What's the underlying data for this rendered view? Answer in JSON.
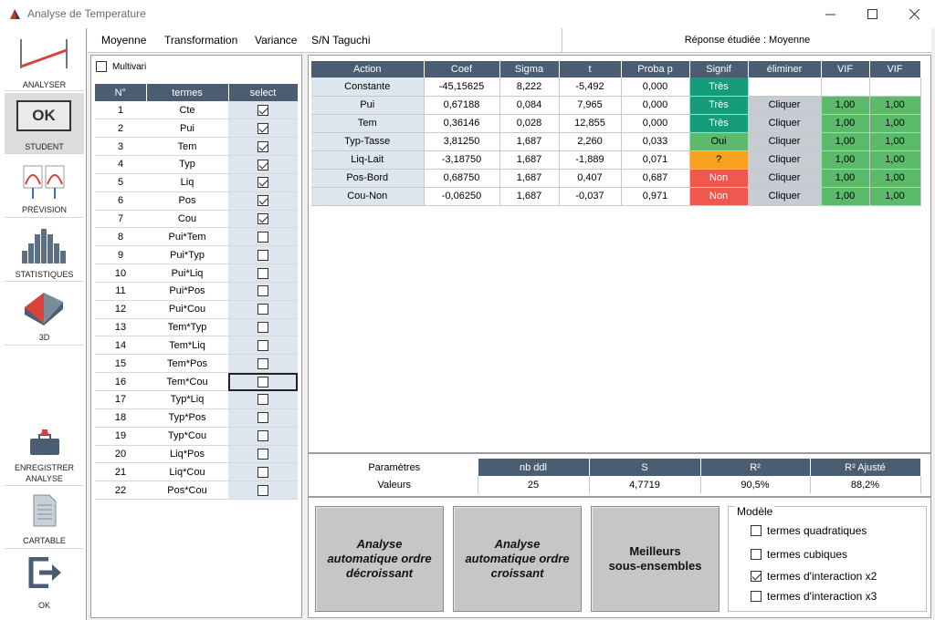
{
  "window": {
    "title": "Analyse de Temperature"
  },
  "toolbar": {
    "items": [
      {
        "label": "ANALYSER",
        "icon": "line-chart-icon"
      },
      {
        "label": "STUDENT",
        "icon": "ok-button-icon",
        "icon_text": "OK"
      },
      {
        "label": "PRÉVISION",
        "icon": "prevision-icon"
      },
      {
        "label": "STATISTIQUES",
        "icon": "histogram-icon"
      },
      {
        "label": "3D",
        "icon": "surface-3d-icon"
      },
      {
        "label": "ENREGISTRER\nANALYSE",
        "icon": "save-briefcase-icon"
      },
      {
        "label": "CARTABLE",
        "icon": "document-icon"
      },
      {
        "label": "OK",
        "icon": "exit-icon"
      }
    ]
  },
  "menu": {
    "items": [
      "Moyenne",
      "Transformation",
      "Variance",
      "S/N Taguchi"
    ]
  },
  "response": {
    "text": "Réponse étudiée : Moyenne"
  },
  "multivari": {
    "label": "Multivari",
    "checked": false
  },
  "terms": {
    "headers": [
      "N°",
      "termes",
      "select"
    ],
    "rows": [
      {
        "n": "1",
        "term": "Cte",
        "selected": true
      },
      {
        "n": "2",
        "term": "Pui",
        "selected": true
      },
      {
        "n": "3",
        "term": "Tem",
        "selected": true
      },
      {
        "n": "4",
        "term": "Typ",
        "selected": true
      },
      {
        "n": "5",
        "term": "Liq",
        "selected": true
      },
      {
        "n": "6",
        "term": "Pos",
        "selected": true
      },
      {
        "n": "7",
        "term": "Cou",
        "selected": true
      },
      {
        "n": "8",
        "term": "Pui*Tem",
        "selected": false
      },
      {
        "n": "9",
        "term": "Pui*Typ",
        "selected": false
      },
      {
        "n": "10",
        "term": "Pui*Liq",
        "selected": false
      },
      {
        "n": "11",
        "term": "Pui*Pos",
        "selected": false
      },
      {
        "n": "12",
        "term": "Pui*Cou",
        "selected": false
      },
      {
        "n": "13",
        "term": "Tem*Typ",
        "selected": false
      },
      {
        "n": "14",
        "term": "Tem*Liq",
        "selected": false
      },
      {
        "n": "15",
        "term": "Tem*Pos",
        "selected": false
      },
      {
        "n": "16",
        "term": "Tem*Cou",
        "selected": false,
        "focused": true
      },
      {
        "n": "17",
        "term": "Typ*Liq",
        "selected": false
      },
      {
        "n": "18",
        "term": "Typ*Pos",
        "selected": false
      },
      {
        "n": "19",
        "term": "Typ*Cou",
        "selected": false
      },
      {
        "n": "20",
        "term": "Liq*Pos",
        "selected": false
      },
      {
        "n": "21",
        "term": "Liq*Cou",
        "selected": false
      },
      {
        "n": "22",
        "term": "Pos*Cou",
        "selected": false
      }
    ]
  },
  "results": {
    "headers": [
      "Action",
      "Coef",
      "Sigma",
      "t",
      "Proba p",
      "Signif",
      "éliminer",
      "VIF",
      "VIF"
    ],
    "rows": [
      {
        "action": "Constante",
        "coef": "-45,15625",
        "sigma": "8,222",
        "t": "-5,492",
        "p": "0,000",
        "signif": "Très",
        "level": "tres",
        "eliminer": "",
        "vif1": "",
        "vif2": ""
      },
      {
        "action": "Pui",
        "coef": "0,67188",
        "sigma": "0,084",
        "t": "7,965",
        "p": "0,000",
        "signif": "Très",
        "level": "tres",
        "eliminer": "Cliquer",
        "vif1": "1,00",
        "vif2": "1,00"
      },
      {
        "action": "Tem",
        "coef": "0,36146",
        "sigma": "0,028",
        "t": "12,855",
        "p": "0,000",
        "signif": "Très",
        "level": "tres",
        "eliminer": "Cliquer",
        "vif1": "1,00",
        "vif2": "1,00"
      },
      {
        "action": "Typ-Tasse",
        "coef": "3,81250",
        "sigma": "1,687",
        "t": "2,260",
        "p": "0,033",
        "signif": "Oui",
        "level": "oui",
        "eliminer": "Cliquer",
        "vif1": "1,00",
        "vif2": "1,00"
      },
      {
        "action": "Liq-Lait",
        "coef": "-3,18750",
        "sigma": "1,687",
        "t": "-1,889",
        "p": "0,071",
        "signif": "?",
        "level": "q",
        "eliminer": "Cliquer",
        "vif1": "1,00",
        "vif2": "1,00"
      },
      {
        "action": "Pos-Bord",
        "coef": "0,68750",
        "sigma": "1,687",
        "t": "0,407",
        "p": "0,687",
        "signif": "Non",
        "level": "non",
        "eliminer": "Cliquer",
        "vif1": "1,00",
        "vif2": "1,00"
      },
      {
        "action": "Cou-Non",
        "coef": "-0,06250",
        "sigma": "1,687",
        "t": "-0,037",
        "p": "0,971",
        "signif": "Non",
        "level": "non",
        "eliminer": "Cliquer",
        "vif1": "1,00",
        "vif2": "1,00"
      }
    ]
  },
  "params": {
    "row_header": "Paramètres",
    "row_label": "Valeurs",
    "headers": [
      "nb ddl",
      "S",
      "R²",
      "R² Ajusté"
    ],
    "values": [
      "25",
      "4,7719",
      "90,5%",
      "88,2%"
    ]
  },
  "actions": {
    "decroissant": "Analyse\nautomatique ordre\ndécroissant",
    "croissant": "Analyse\nautomatique  ordre\ncroissant",
    "meilleurs": "Meilleurs\nsous-ensembles"
  },
  "modele": {
    "legend": "Modèle",
    "options": [
      {
        "label": "termes quadratiques",
        "checked": false
      },
      {
        "label": "termes cubiques",
        "checked": false
      },
      {
        "label": "termes d'interaction x2",
        "checked": true
      },
      {
        "label": "termes d'interaction x3",
        "checked": false
      }
    ]
  },
  "colors": {
    "header": "#4a5d72",
    "tres": "#169c7a",
    "oui": "#5bbb6b",
    "question": "#f7a11e",
    "non": "#f0584f"
  }
}
